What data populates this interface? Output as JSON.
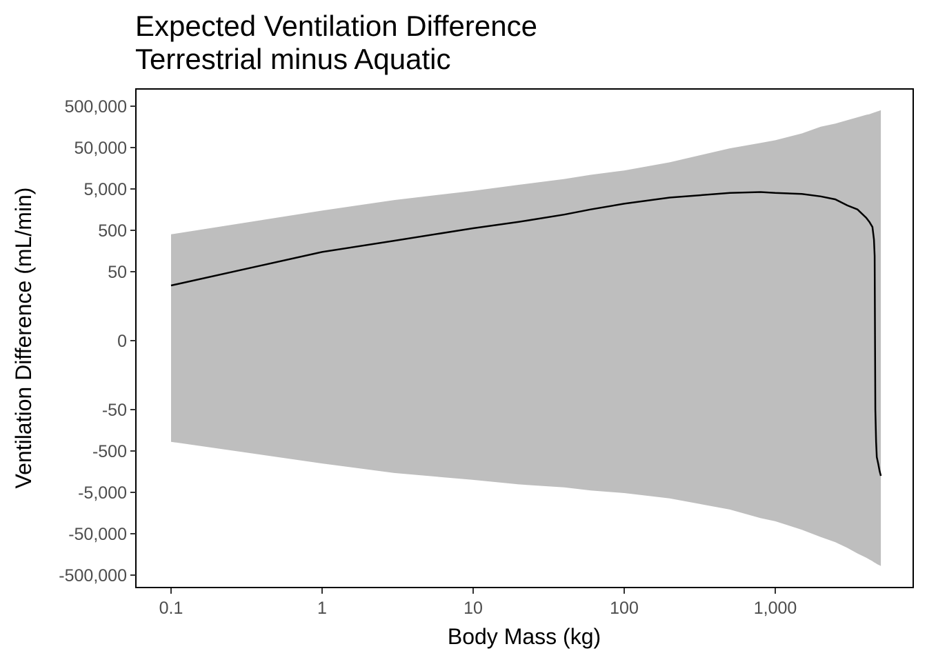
{
  "chart_data": {
    "type": "line",
    "title": "Expected Ventilation Difference",
    "subtitle": "Terrestrial minus Aquatic",
    "xlabel": "Body Mass (kg)",
    "ylabel": "Ventilation Difference (mL/min)",
    "x_scale": "log10",
    "y_scale": "symmetric-log",
    "xlim": [
      0.1,
      5000
    ],
    "ylim": [
      -500000,
      500000
    ],
    "grid": false,
    "legend": "none",
    "x_ticks": [
      0.1,
      1,
      10,
      100,
      1000
    ],
    "x_tick_labels": [
      "0.1",
      "1",
      "10",
      "100",
      "1,000"
    ],
    "y_ticks": [
      500000,
      50000,
      5000,
      500,
      50,
      0,
      -50,
      -500,
      -5000,
      -50000,
      -500000
    ],
    "y_tick_labels": [
      "500,000",
      "50,000",
      "5,000",
      "500",
      "50",
      "0",
      "-50",
      "-500",
      "-5,000",
      "-50,000",
      "-500,000"
    ],
    "colors": {
      "line": "#000000",
      "ribbon": "#bebebe",
      "axis": "#000000",
      "tick_text": "#4d4d4d"
    },
    "series": [
      {
        "x": [
          0.1,
          1,
          3,
          10,
          20,
          40,
          60,
          100,
          200,
          500,
          800,
          1000,
          1500,
          2000,
          2500,
          3000,
          3500,
          4000,
          4200,
          4400,
          4500,
          4550,
          4600,
          4650,
          4700,
          4800,
          4900,
          5000
        ],
        "y": [
          40,
          150,
          280,
          560,
          800,
          1200,
          1600,
          2200,
          3100,
          4000,
          4200,
          4000,
          3800,
          3300,
          2800,
          2000,
          1600,
          1000,
          800,
          600,
          300,
          120,
          -50,
          -300,
          -700,
          -1000,
          -1500,
          -2000
        ],
        "lower": [
          -300,
          -1000,
          -1700,
          -2500,
          -3200,
          -3800,
          -4500,
          -5200,
          -7000,
          -13000,
          -21000,
          -25000,
          -40000,
          -60000,
          -80000,
          -110000,
          -150000,
          -190000,
          -210000,
          -230000,
          -245000,
          -250000,
          -255000,
          -260000,
          -270000,
          -280000,
          -290000,
          -300000
        ],
        "upper": [
          400,
          1500,
          2700,
          4500,
          6300,
          8700,
          11000,
          14000,
          22000,
          48000,
          65000,
          75000,
          110000,
          160000,
          190000,
          230000,
          270000,
          310000,
          320000,
          340000,
          350000,
          355000,
          360000,
          365000,
          370000,
          380000,
          390000,
          400000
        ]
      }
    ]
  }
}
